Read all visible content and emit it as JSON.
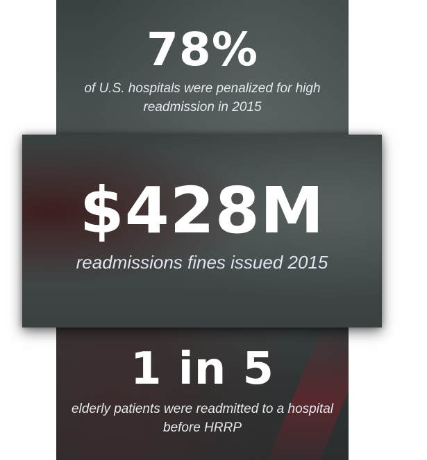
{
  "stats": {
    "top": {
      "value": "78%",
      "caption": "of U.S. hospitals were penalized for high readmission in 2015"
    },
    "middle": {
      "value": "$428M",
      "caption": "readmissions fines issued 2015"
    },
    "bottom": {
      "value": "1 in 5",
      "caption": "elderly patients were readmitted to a hospital before HRRP"
    }
  }
}
